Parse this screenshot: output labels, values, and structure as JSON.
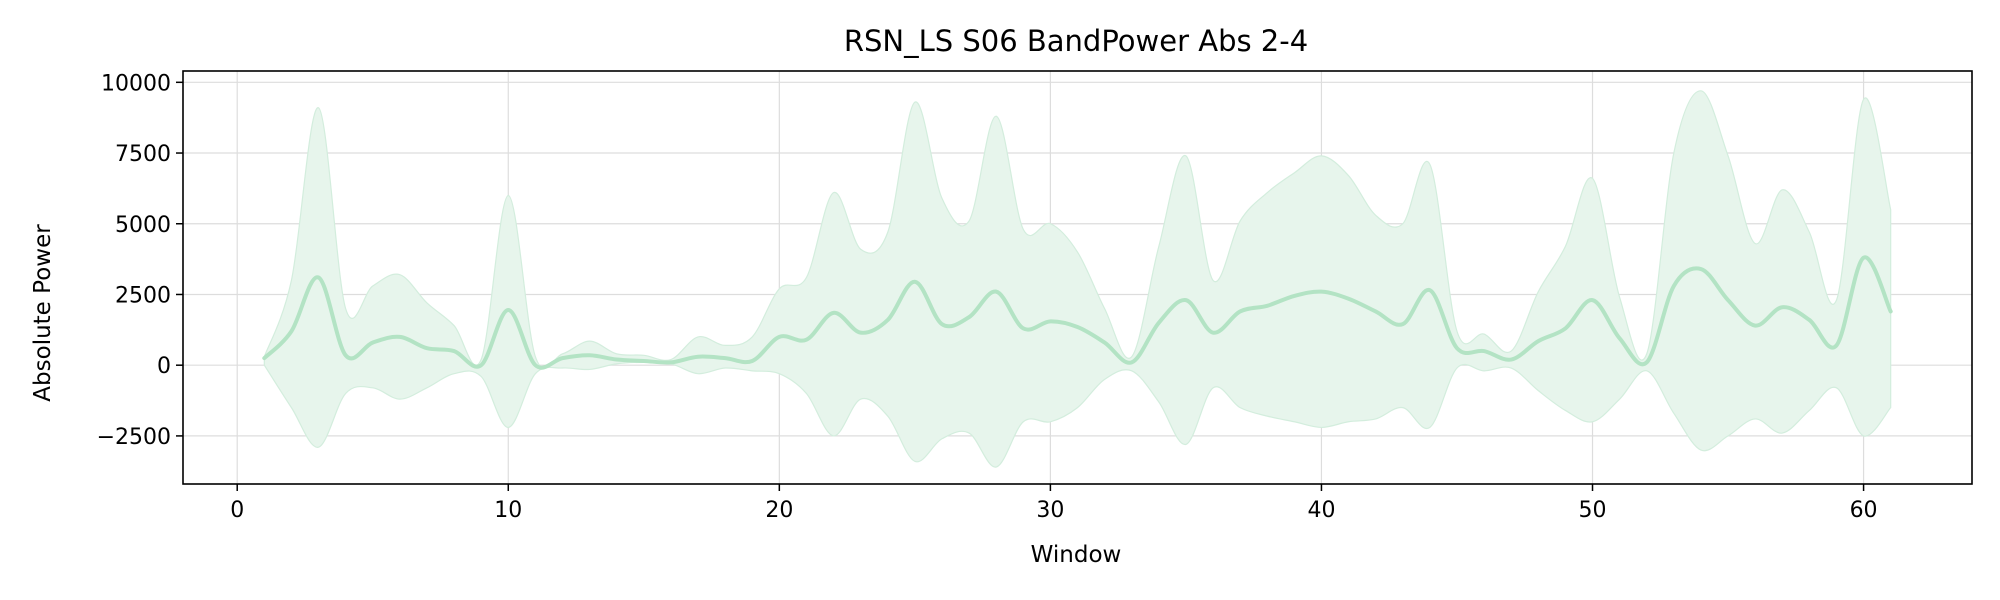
{
  "chart_data": {
    "type": "line",
    "title": "RSN_LS S06 BandPower Abs 2-4",
    "xlabel": "Window",
    "ylabel": "Absolute Power",
    "xlim": [
      -2,
      64
    ],
    "ylim": [
      -4200,
      10400
    ],
    "xticks": [
      0,
      10,
      20,
      30,
      40,
      50,
      60
    ],
    "yticks": [
      -2500,
      0,
      2500,
      5000,
      7500,
      10000
    ],
    "ytick_labels": [
      "−2500",
      "0",
      "2500",
      "5000",
      "7500",
      "10000"
    ],
    "grid": true,
    "line_color": "#b3e3c4",
    "band_color": "#e7f5ec",
    "band_edge_color": "#d3eddd",
    "series": [
      {
        "x": [
          1,
          2,
          3,
          4,
          5,
          6,
          7,
          8,
          9,
          10,
          11,
          12,
          13,
          14,
          15,
          16,
          17,
          18,
          19,
          20,
          21,
          22,
          23,
          24,
          25,
          26,
          27,
          28,
          29,
          30,
          31,
          32,
          33,
          34,
          35,
          36,
          37,
          38,
          39,
          40,
          41,
          42,
          43,
          44,
          45,
          46,
          47,
          48,
          49,
          50,
          51,
          52,
          53,
          54,
          55,
          56,
          57,
          58,
          59,
          60,
          61
        ],
        "mean": [
          250,
          1200,
          3100,
          350,
          800,
          1000,
          600,
          500,
          0,
          1950,
          0,
          250,
          350,
          200,
          150,
          100,
          300,
          250,
          150,
          1000,
          900,
          1850,
          1150,
          1600,
          2950,
          1450,
          1700,
          2600,
          1300,
          1550,
          1350,
          800,
          100,
          1500,
          2300,
          1150,
          1900,
          2100,
          2450,
          2600,
          2350,
          1900,
          1450,
          2650,
          600,
          500,
          200,
          850,
          1300,
          2300,
          950,
          100,
          2800,
          3400,
          2300,
          1400,
          2050,
          1600,
          700,
          3800,
          1900
        ],
        "upper": [
          300,
          3000,
          9100,
          2000,
          2800,
          3200,
          2200,
          1400,
          200,
          6000,
          300,
          400,
          850,
          400,
          350,
          200,
          1000,
          700,
          1000,
          2700,
          3100,
          6100,
          4100,
          4700,
          9300,
          5900,
          5100,
          8800,
          4800,
          5000,
          4000,
          2000,
          300,
          4200,
          7400,
          3000,
          5100,
          6100,
          6800,
          7400,
          6700,
          5300,
          5000,
          7100,
          1200,
          1100,
          500,
          2600,
          4200,
          6600,
          2400,
          400,
          7500,
          9700,
          7400,
          4300,
          6200,
          4700,
          2300,
          9400,
          5500
        ],
        "lower": [
          0,
          -1500,
          -2900,
          -1000,
          -800,
          -1200,
          -800,
          -300,
          -400,
          -2200,
          -300,
          -100,
          -150,
          50,
          100,
          50,
          -300,
          -100,
          -200,
          -300,
          -1000,
          -2500,
          -1200,
          -1800,
          -3400,
          -2600,
          -2400,
          -3600,
          -2000,
          -2000,
          -1500,
          -500,
          -200,
          -1300,
          -2800,
          -800,
          -1500,
          -1800,
          -2000,
          -2200,
          -2000,
          -1900,
          -1500,
          -2200,
          -100,
          -200,
          -100,
          -900,
          -1600,
          -2000,
          -1200,
          -200,
          -1700,
          -3000,
          -2500,
          -1900,
          -2400,
          -1600,
          -800,
          -2500,
          -1500
        ]
      }
    ]
  }
}
